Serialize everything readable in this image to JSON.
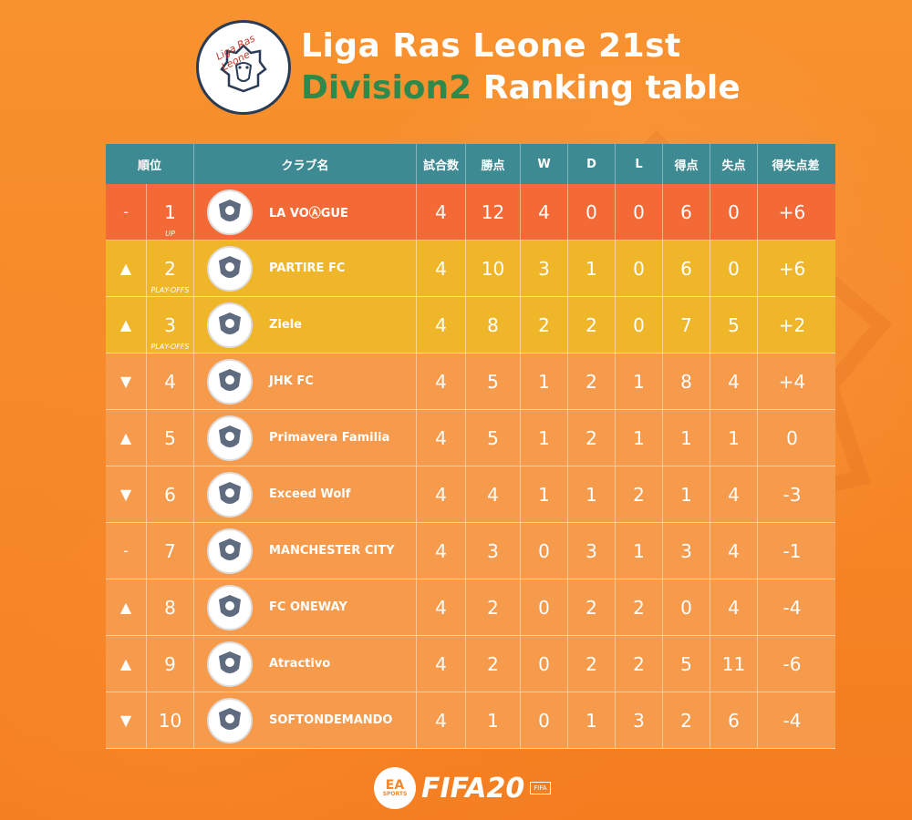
{
  "header": {
    "title_line1": "Liga Ras Leone 21st",
    "division": "Division2",
    "title_rest": " Ranking table",
    "logo_text": "Liga Ras Leone"
  },
  "columns": [
    "順位",
    "クラブ名",
    "試合数",
    "勝点",
    "W",
    "D",
    "L",
    "得点",
    "失点",
    "得失点差"
  ],
  "rows": [
    {
      "move": "-",
      "rank": "1",
      "note": "UP",
      "club": "LA VOⒶGUE",
      "crest": "lavogue-crest-icon",
      "p": "4",
      "pts": "12",
      "w": "4",
      "d": "0",
      "l": "0",
      "gf": "6",
      "ga": "0",
      "gd": "+6"
    },
    {
      "move": "▲",
      "rank": "2",
      "note": "PLAY-OFFS",
      "club": "PARTIRE FC",
      "crest": "partire-crest-icon",
      "p": "4",
      "pts": "10",
      "w": "3",
      "d": "1",
      "l": "0",
      "gf": "6",
      "ga": "0",
      "gd": "+6"
    },
    {
      "move": "▲",
      "rank": "3",
      "note": "PLAY-OFFS",
      "club": "Ziele",
      "crest": "ziele-crest-icon",
      "p": "4",
      "pts": "8",
      "w": "2",
      "d": "2",
      "l": "0",
      "gf": "7",
      "ga": "5",
      "gd": "+2"
    },
    {
      "move": "▼",
      "rank": "4",
      "note": "",
      "club": "JHK FC",
      "crest": "jhk-crest-icon",
      "p": "4",
      "pts": "5",
      "w": "1",
      "d": "2",
      "l": "1",
      "gf": "8",
      "ga": "4",
      "gd": "+4"
    },
    {
      "move": "▲",
      "rank": "5",
      "note": "",
      "club": "Primavera Familia",
      "crest": "primavera-crest-icon",
      "p": "4",
      "pts": "5",
      "w": "1",
      "d": "2",
      "l": "1",
      "gf": "1",
      "ga": "1",
      "gd": "0"
    },
    {
      "move": "▼",
      "rank": "6",
      "note": "",
      "club": "Exceed Wolf",
      "crest": "exceedwolf-crest-icon",
      "p": "4",
      "pts": "4",
      "w": "1",
      "d": "1",
      "l": "2",
      "gf": "1",
      "ga": "4",
      "gd": "-3"
    },
    {
      "move": "-",
      "rank": "7",
      "note": "",
      "club": "MANCHESTER CITY",
      "crest": "mancity-crest-icon",
      "p": "4",
      "pts": "3",
      "w": "0",
      "d": "3",
      "l": "1",
      "gf": "3",
      "ga": "4",
      "gd": "-1"
    },
    {
      "move": "▲",
      "rank": "8",
      "note": "",
      "club": "FC ONEWAY",
      "crest": "oneway-crest-icon",
      "p": "4",
      "pts": "2",
      "w": "0",
      "d": "2",
      "l": "2",
      "gf": "0",
      "ga": "4",
      "gd": "-4"
    },
    {
      "move": "▲",
      "rank": "9",
      "note": "",
      "club": "Atractivo",
      "crest": "atractivo-crest-icon",
      "p": "4",
      "pts": "2",
      "w": "0",
      "d": "2",
      "l": "2",
      "gf": "5",
      "ga": "11",
      "gd": "-6"
    },
    {
      "move": "▼",
      "rank": "10",
      "note": "",
      "club": "SOFTONDEMANDO",
      "crest": "softondemando-crest-icon",
      "p": "4",
      "pts": "1",
      "w": "0",
      "d": "1",
      "l": "3",
      "gf": "2",
      "ga": "6",
      "gd": "-4"
    }
  ],
  "footer": {
    "ea_line1": "EA",
    "ea_line2": "SPORTS",
    "fifa_text": "FIFA20",
    "fifa_badge": "FIFA"
  },
  "colors": {
    "background": "#f5862a",
    "header_row": "#3e8a92",
    "row_first": "#f36a36",
    "row_playoff": "#f0b62a",
    "row_other": "#f69a4c",
    "division_text": "#2e8a4c"
  }
}
